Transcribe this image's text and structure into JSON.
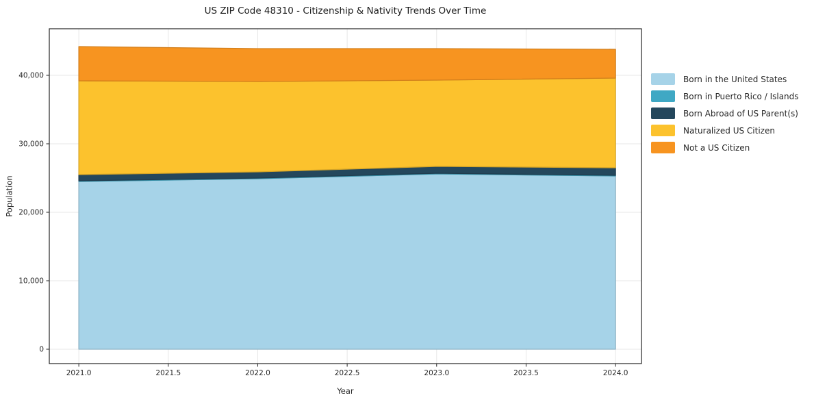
{
  "chart_data": {
    "type": "area",
    "stacked": true,
    "title": "US ZIP Code 48310 - Citizenship & Nativity Trends Over Time",
    "xlabel": "Year",
    "ylabel": "Population",
    "x": [
      2021,
      2022,
      2023,
      2024
    ],
    "series": [
      {
        "name": "Born in the United States",
        "color": "#a6d3e8",
        "values": [
          24500,
          24900,
          25600,
          25300
        ]
      },
      {
        "name": "Born in Puerto Rico / Islands",
        "color": "#3fa8c4",
        "values": [
          100,
          100,
          100,
          100
        ]
      },
      {
        "name": "Born Abroad of US Parent(s)",
        "color": "#24475c",
        "values": [
          900,
          900,
          1000,
          1100
        ]
      },
      {
        "name": "Naturalized US Citizen",
        "color": "#fcc22d",
        "values": [
          13700,
          13200,
          12600,
          13100
        ]
      },
      {
        "name": "Not a US Citizen",
        "color": "#f79420",
        "values": [
          5000,
          4800,
          4600,
          4200
        ]
      }
    ],
    "xlim": [
      2020.835,
      2024.145
    ],
    "ylim": [
      -2100,
      46800
    ],
    "xticks": {
      "values": [
        2021.0,
        2021.5,
        2022.0,
        2022.5,
        2023.0,
        2023.5,
        2024.0
      ],
      "labels": [
        "2021.0",
        "2021.5",
        "2022.0",
        "2022.5",
        "2023.0",
        "2023.5",
        "2024.0"
      ]
    },
    "yticks": {
      "values": [
        0,
        10000,
        20000,
        30000,
        40000
      ],
      "labels": [
        "0",
        "10,000",
        "20,000",
        "30,000",
        "40,000"
      ]
    },
    "grid": true,
    "legend_position": "outside-right",
    "colors": {
      "grid": "#e7e7e7",
      "spine": "#262626",
      "tick_text": "#262626",
      "background": "#ffffff"
    }
  }
}
